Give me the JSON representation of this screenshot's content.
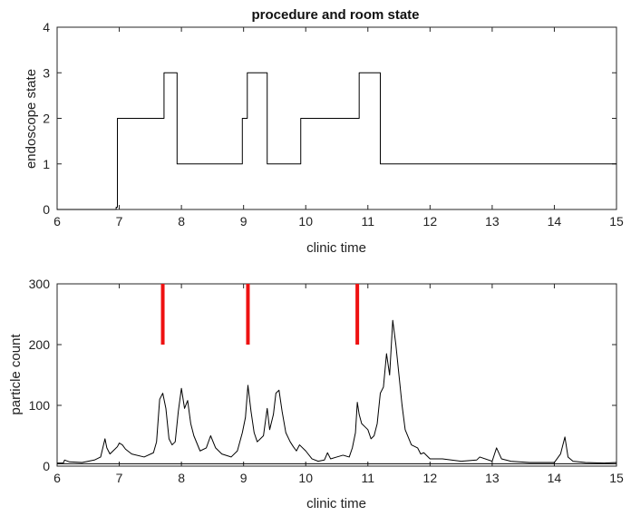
{
  "chart_data": [
    {
      "type": "line",
      "title": "procedure and room state",
      "xlabel": "clinic time",
      "ylabel": "endoscope state",
      "xlim": [
        6,
        15
      ],
      "ylim": [
        0,
        4
      ],
      "xticks": [
        "6",
        "7",
        "8",
        "9",
        "10",
        "11",
        "12",
        "13",
        "14",
        "15"
      ],
      "yticks": [
        "0",
        "1",
        "2",
        "3",
        "4"
      ],
      "grid": false,
      "legend": "none",
      "line_color": "#000000",
      "series": [
        {
          "step": true,
          "x": [
            6.0,
            6.95,
            6.97,
            7.72,
            7.93,
            8.98,
            9.06,
            9.38,
            9.92,
            10.86,
            11.2,
            15.0
          ],
          "values": [
            0,
            0.05,
            2,
            3,
            1,
            2,
            3,
            1,
            2,
            3,
            1,
            1
          ]
        }
      ]
    },
    {
      "type": "line",
      "title": "",
      "xlabel": "clinic time",
      "ylabel": "particle count",
      "xlim": [
        6,
        15
      ],
      "ylim": [
        0,
        300
      ],
      "xticks": [
        "6",
        "7",
        "8",
        "9",
        "10",
        "11",
        "12",
        "13",
        "14",
        "15"
      ],
      "yticks": [
        "0",
        "100",
        "200",
        "300"
      ],
      "grid": false,
      "legend": "none",
      "line_color": "#000000",
      "marker_color": "#ee1111",
      "markers": [
        {
          "x": 7.7,
          "y0": 200,
          "y1": 300
        },
        {
          "x": 9.07,
          "y0": 200,
          "y1": 300
        },
        {
          "x": 10.83,
          "y0": 200,
          "y1": 300
        }
      ],
      "series": [
        {
          "x": [
            6.0,
            6.1,
            6.12,
            6.2,
            6.4,
            6.6,
            6.7,
            6.77,
            6.8,
            6.85,
            6.9,
            6.97,
            7.0,
            7.05,
            7.1,
            7.2,
            7.4,
            7.55,
            7.6,
            7.65,
            7.7,
            7.75,
            7.8,
            7.85,
            7.9,
            7.95,
            8.0,
            8.05,
            8.1,
            8.15,
            8.2,
            8.3,
            8.4,
            8.47,
            8.55,
            8.65,
            8.8,
            8.9,
            8.98,
            9.03,
            9.07,
            9.12,
            9.17,
            9.22,
            9.27,
            9.32,
            9.38,
            9.42,
            9.48,
            9.52,
            9.57,
            9.62,
            9.68,
            9.75,
            9.8,
            9.85,
            9.9,
            10.0,
            10.1,
            10.2,
            10.3,
            10.35,
            10.4,
            10.5,
            10.6,
            10.7,
            10.75,
            10.8,
            10.83,
            10.86,
            10.9,
            10.95,
            11.0,
            11.05,
            11.1,
            11.15,
            11.2,
            11.25,
            11.3,
            11.35,
            11.4,
            11.45,
            11.5,
            11.55,
            11.6,
            11.7,
            11.8,
            11.85,
            11.9,
            12.0,
            12.2,
            12.5,
            12.75,
            12.8,
            13.0,
            13.07,
            13.15,
            13.3,
            13.6,
            14.0,
            14.1,
            14.17,
            14.22,
            14.3,
            14.5,
            14.8,
            15.0
          ],
          "values": [
            5,
            5,
            10,
            7,
            6,
            10,
            15,
            45,
            30,
            20,
            25,
            32,
            38,
            35,
            28,
            20,
            15,
            22,
            40,
            110,
            120,
            95,
            45,
            35,
            40,
            90,
            128,
            95,
            108,
            70,
            50,
            25,
            30,
            50,
            30,
            20,
            15,
            25,
            55,
            80,
            133,
            90,
            55,
            40,
            45,
            50,
            95,
            60,
            85,
            120,
            125,
            90,
            55,
            40,
            32,
            25,
            35,
            25,
            12,
            8,
            10,
            22,
            12,
            15,
            18,
            15,
            30,
            55,
            105,
            85,
            70,
            65,
            60,
            45,
            50,
            70,
            120,
            130,
            185,
            150,
            240,
            200,
            150,
            100,
            60,
            35,
            30,
            20,
            22,
            12,
            12,
            8,
            10,
            15,
            8,
            30,
            12,
            8,
            6,
            6,
            20,
            48,
            15,
            8,
            6,
            5,
            6
          ]
        },
        {
          "x": [
            6.0,
            15.0
          ],
          "values": [
            4,
            4
          ]
        }
      ]
    }
  ]
}
